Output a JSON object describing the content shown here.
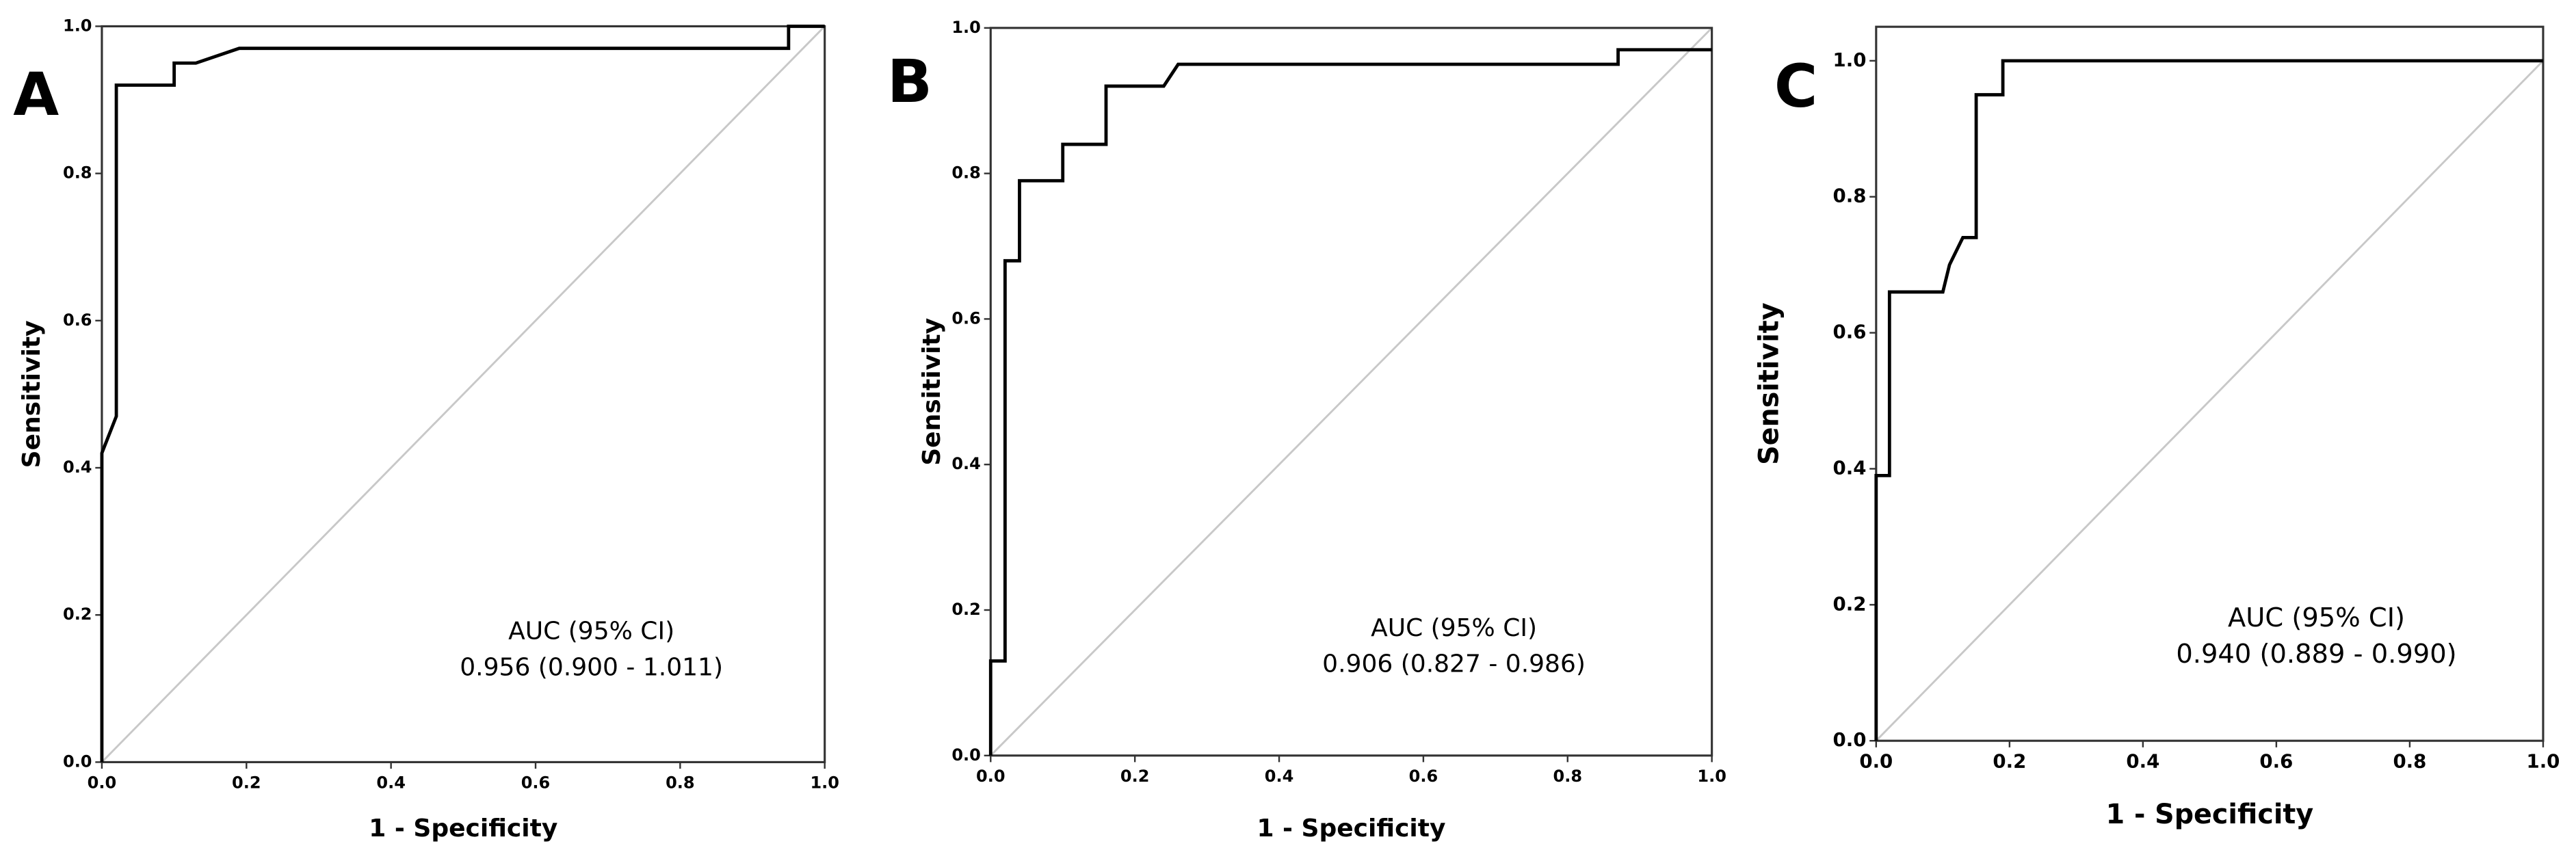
{
  "chart_data": [
    {
      "type": "line",
      "panel_label": "A",
      "xlabel": "1 - Specificity",
      "ylabel": "Sensitivity",
      "annotations": [
        "AUC (95% CI)",
        "0.956 (0.900 - 1.011)"
      ],
      "x": [
        0,
        0,
        0.02,
        0.02,
        0.1,
        0.1,
        0.13,
        0.19,
        0.95,
        0.95,
        1.0
      ],
      "values": [
        0,
        0.42,
        0.47,
        0.92,
        0.92,
        0.95,
        0.95,
        0.97,
        0.97,
        1.0,
        1.0
      ],
      "color": "#000000",
      "xlim": [
        0,
        1
      ],
      "ylim": [
        0,
        1
      ],
      "xticks": [
        {
          "value": 0,
          "label": "0.0"
        },
        0.2,
        0.4,
        0.6,
        0.8,
        {
          "value": 1,
          "label": "1.0"
        }
      ],
      "yticks": [
        {
          "value": 0,
          "label": "0.0"
        },
        0.2,
        0.4,
        0.6,
        0.8,
        {
          "value": 1,
          "label": "1.0"
        }
      ]
    },
    {
      "type": "line",
      "panel_label": "B",
      "xlabel": "1 - Specificity",
      "ylabel": "Sensitivity",
      "annotations": [
        "AUC (95% CI)",
        "0.906 (0.827 - 0.986)"
      ],
      "x": [
        0,
        0,
        0.02,
        0.02,
        0.04,
        0.04,
        0.1,
        0.1,
        0.16,
        0.16,
        0.24,
        0.26,
        0.87,
        0.87,
        1.0
      ],
      "values": [
        0,
        0.13,
        0.13,
        0.68,
        0.68,
        0.79,
        0.79,
        0.84,
        0.84,
        0.92,
        0.92,
        0.95,
        0.95,
        0.97,
        0.97
      ],
      "color": "#000000",
      "xlim": [
        0,
        1
      ],
      "ylim": [
        0,
        1
      ],
      "xticks": [
        {
          "value": 0,
          "label": "0.0"
        },
        0.2,
        0.4,
        0.6,
        0.8,
        {
          "value": 1,
          "label": "1.0"
        }
      ],
      "yticks": [
        {
          "value": 0,
          "label": "0.0"
        },
        0.2,
        0.4,
        0.6,
        0.8,
        {
          "value": 1,
          "label": "1.0"
        }
      ]
    },
    {
      "type": "line",
      "panel_label": "C",
      "xlabel": "1 - Specificity",
      "ylabel": "Sensitivity",
      "annotations": [
        "AUC (95% CI)",
        "0.940 (0.889 - 0.990)"
      ],
      "x": [
        0,
        0,
        0.02,
        0.02,
        0.1,
        0.11,
        0.13,
        0.15,
        0.15,
        0.19,
        0.19,
        1.0
      ],
      "values": [
        0,
        0.39,
        0.39,
        0.66,
        0.66,
        0.7,
        0.74,
        0.74,
        0.95,
        0.95,
        1.0,
        1.0
      ],
      "color": "#000000",
      "xlim": [
        0,
        1
      ],
      "ylim": [
        0,
        1.05
      ],
      "xticks": [
        {
          "value": 0,
          "label": "0.0"
        },
        0.2,
        0.4,
        0.6,
        0.8,
        {
          "value": 1,
          "label": "1.0"
        }
      ],
      "yticks": [
        {
          "value": 0,
          "label": "0.0"
        },
        0.2,
        0.4,
        0.6,
        0.8,
        {
          "value": 1,
          "label": "1.0"
        }
      ]
    }
  ]
}
